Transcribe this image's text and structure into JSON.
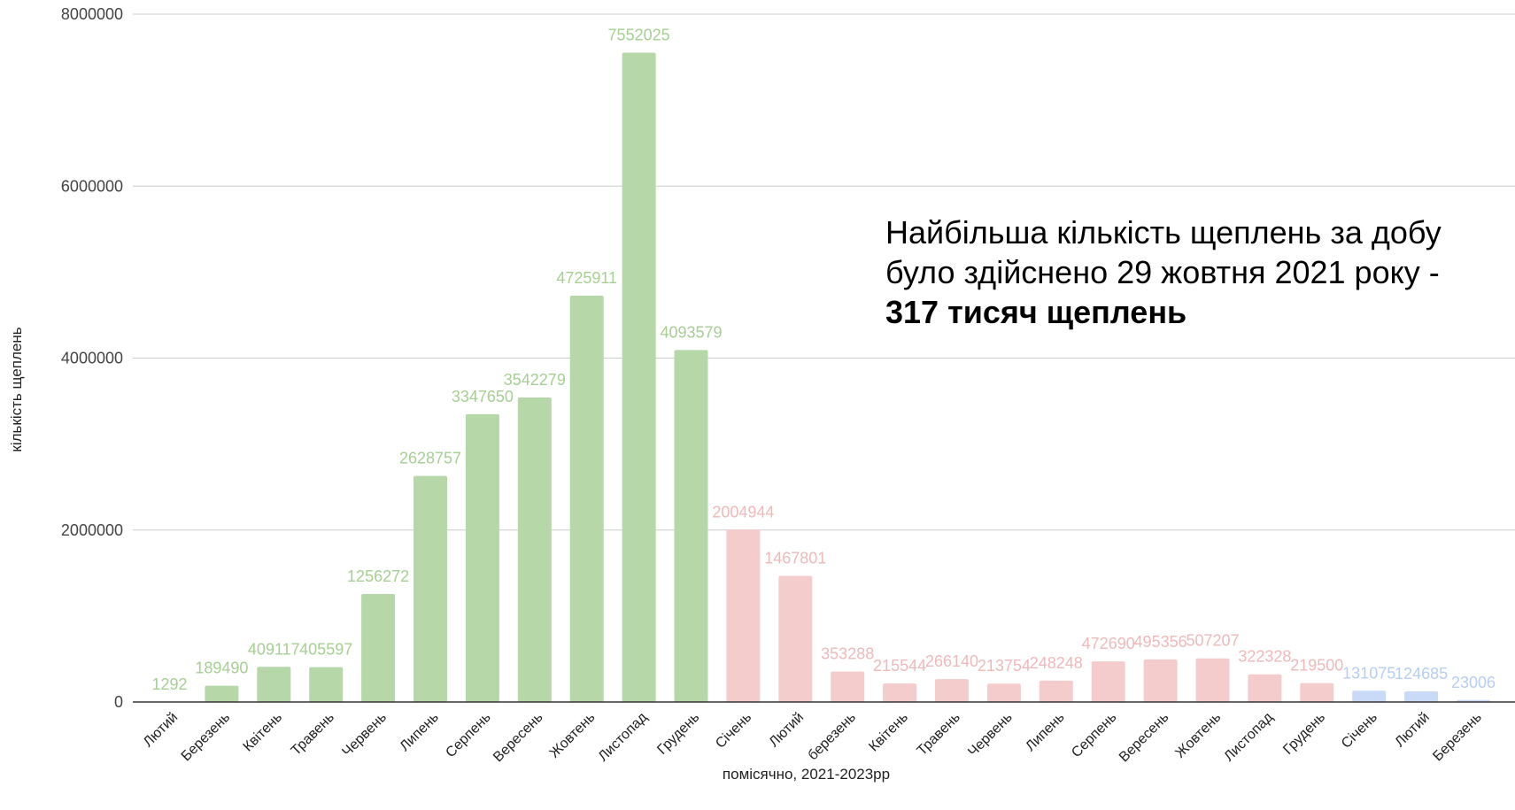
{
  "chart_data": {
    "type": "bar",
    "title": "",
    "xlabel": "помісячно, 2021-2023рр",
    "ylabel": "кількість щеплень",
    "ylim": [
      0,
      8000000
    ],
    "yticks": [
      "0",
      "2000000",
      "4000000",
      "6000000",
      "8000000"
    ],
    "grid": true,
    "legend": "none",
    "categories": [
      "Лютий",
      "Березень",
      "Квітень",
      "Травень",
      "Червень",
      "Липень",
      "Серпень",
      "Вересень",
      "Жовтень",
      "Листопад",
      "Грудень",
      "Січень",
      "Лютий",
      "березень",
      "Квітень",
      "Травень",
      "Червень",
      "Липень",
      "Серпень",
      "Вересень",
      "Жовтень",
      "Листопад",
      "Грудень",
      "Січень",
      "Лютий",
      "Березень"
    ],
    "values": [
      1292,
      189490,
      409117,
      405597,
      1256272,
      2628757,
      3347650,
      3542279,
      4725911,
      7552025,
      4093579,
      2004944,
      1467801,
      353288,
      215544,
      266140,
      213754,
      248248,
      472690,
      495356,
      507207,
      322328,
      219500,
      131075,
      124685,
      23006
    ],
    "year_groups": [
      {
        "start": 0,
        "end": 10,
        "color": "#b6d7a8",
        "label_color": "#a5cf93"
      },
      {
        "start": 11,
        "end": 22,
        "color": "#f4cccc",
        "label_color": "#efb9b9"
      },
      {
        "start": 23,
        "end": 25,
        "color": "#c9daf8",
        "label_color": "#b6cdf5"
      }
    ]
  },
  "annotation": {
    "line1": "Найбільша кількість щеплень за добу",
    "line2": "було здійснено 29 жовтня 2021 року -",
    "line3": "317 тисяч щеплень"
  }
}
